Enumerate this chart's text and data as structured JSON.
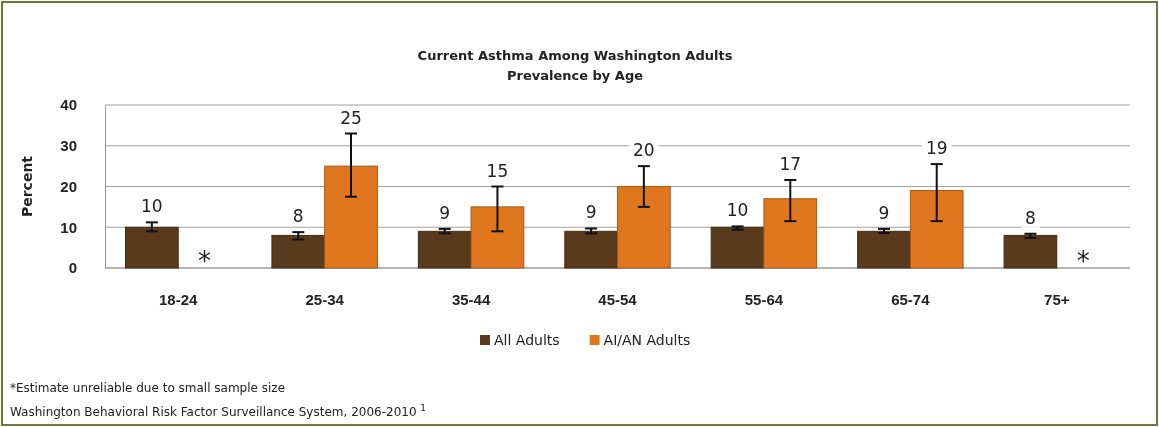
{
  "chart_data": {
    "type": "bar",
    "title": "Current Asthma Among Washington Adults",
    "subtitle": "Prevalence by Age",
    "ylabel": "Percent",
    "categories": [
      "18-24",
      "25-34",
      "35-44",
      "45-54",
      "55-64",
      "65-74",
      "75+"
    ],
    "series": [
      {
        "name": "All Adults",
        "color": "#5a3a1c",
        "values": [
          10,
          8,
          9,
          9,
          10,
          9,
          8
        ],
        "errors": [
          [
            9,
            11.2
          ],
          [
            7,
            8.8
          ],
          [
            8.5,
            9.6
          ],
          [
            8.5,
            9.7
          ],
          [
            9.4,
            10.2
          ],
          [
            8.6,
            9.6
          ],
          [
            7.4,
            8.4
          ]
        ],
        "value_labels": [
          "10",
          "8",
          "9",
          "9",
          "10",
          "9",
          "8"
        ]
      },
      {
        "name": "AI/AN Adults",
        "color": "#e0761e",
        "values": [
          null,
          25,
          15,
          20,
          17,
          19,
          null
        ],
        "errors": [
          null,
          [
            17.5,
            33
          ],
          [
            9,
            20
          ],
          [
            15,
            25
          ],
          [
            11.5,
            21.6
          ],
          [
            11.5,
            25.5
          ],
          null
        ],
        "value_labels": [
          "*",
          "25",
          "15",
          "20",
          "17",
          "19",
          "*"
        ]
      }
    ],
    "ylim": [
      0,
      40
    ],
    "yticks": [
      0,
      10,
      20,
      30,
      40
    ],
    "grid": "y",
    "legend": "bottom",
    "annotations": [
      "*Estimate unreliable due to small sample size",
      "Washington Behavioral Risk Factor Surveillance System, 2006-2010 $^{1}$"
    ]
  }
}
